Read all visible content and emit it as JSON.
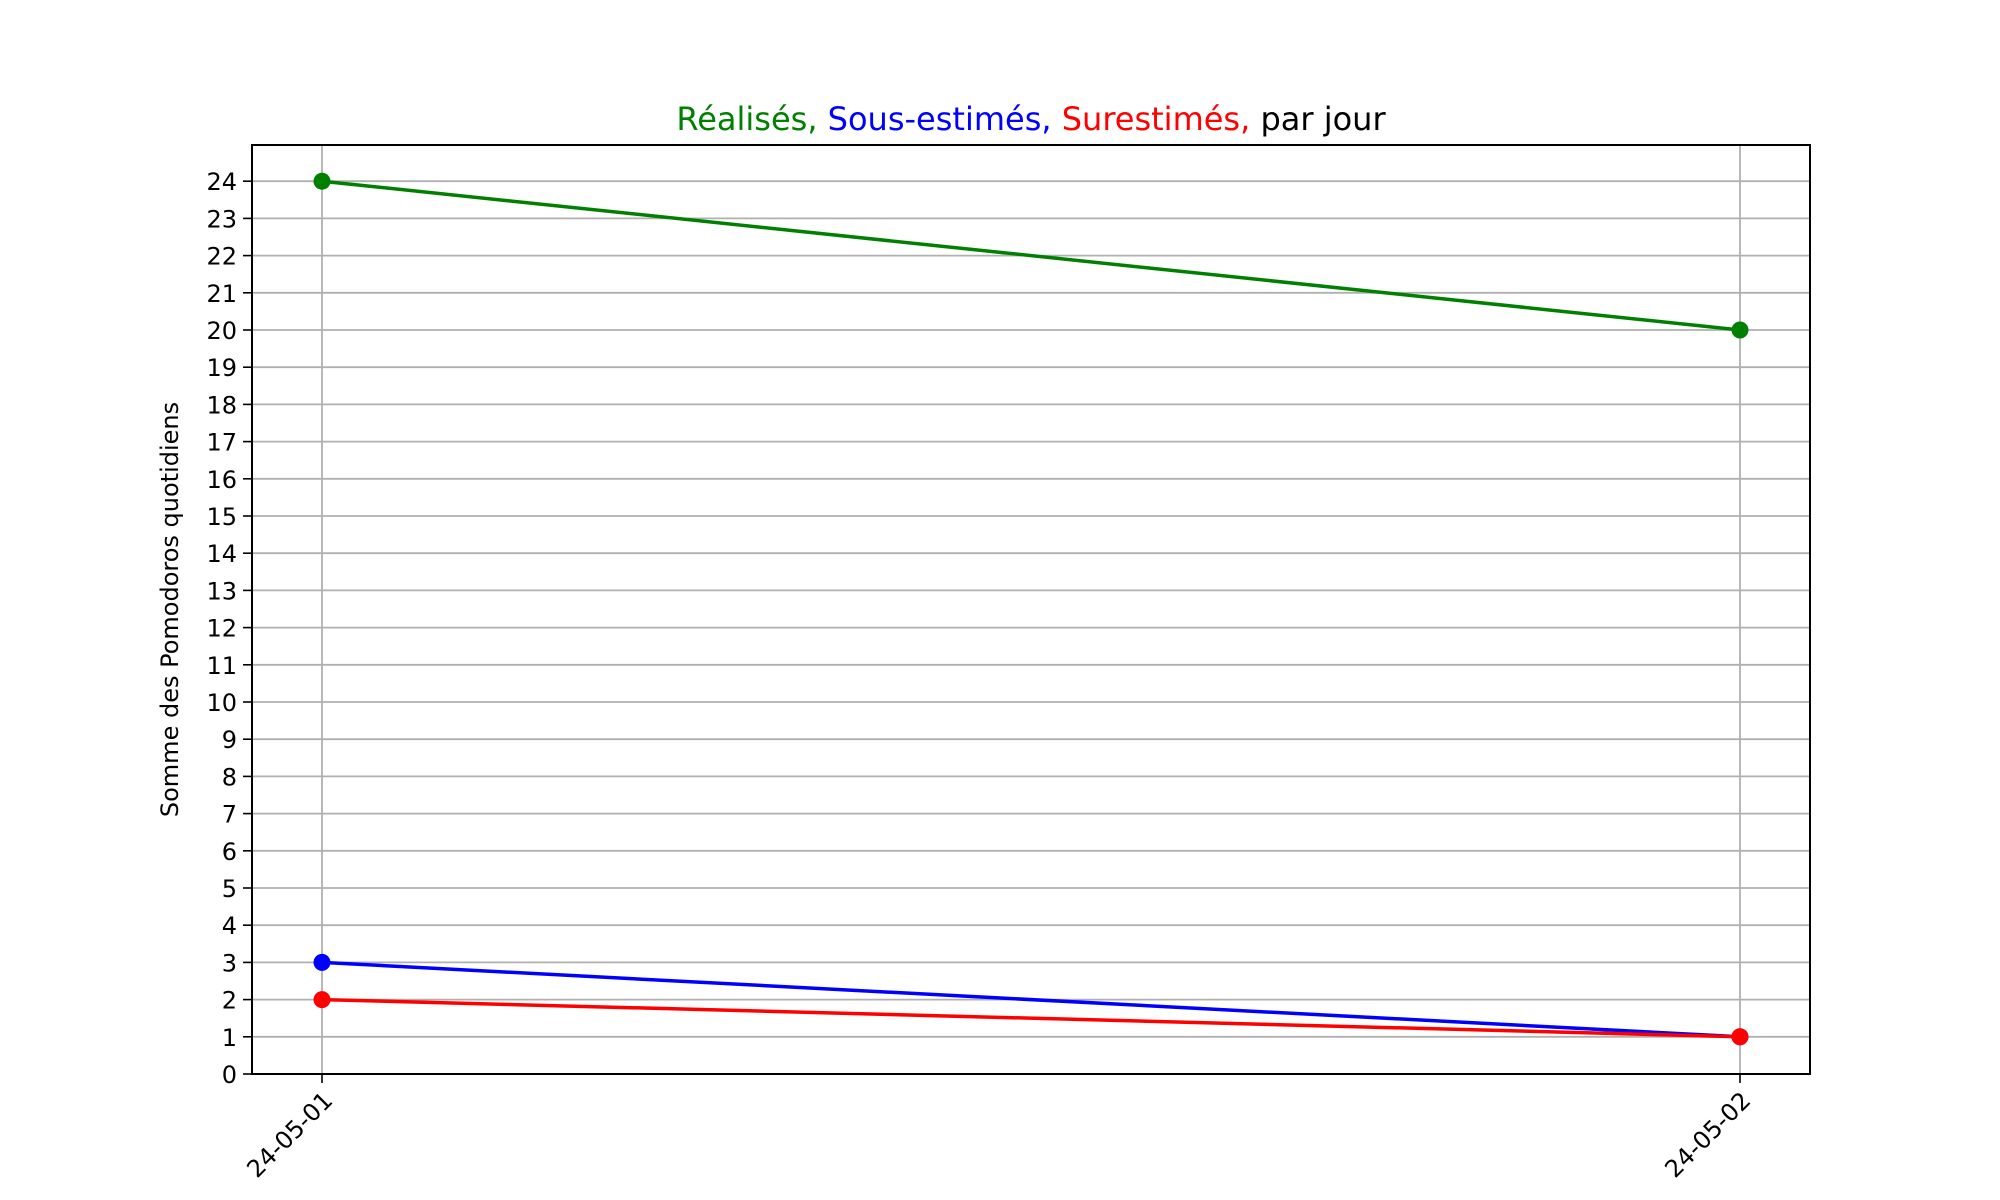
{
  "chart_data": {
    "type": "line",
    "title_parts": [
      {
        "text": "Réalisés,",
        "color": "#008000"
      },
      {
        "text": "Sous-estimés,",
        "color": "#0000ff"
      },
      {
        "text": "Surestimés,",
        "color": "#ff0000"
      },
      {
        "text": "par jour",
        "color": "#000000"
      }
    ],
    "xlabel": "",
    "ylabel": "Somme des Pomodoros quotidiens",
    "categories": [
      "24-05-01",
      "24-05-02"
    ],
    "series": [
      {
        "key": "realises",
        "color": "#008000",
        "values": [
          24,
          20
        ]
      },
      {
        "key": "sous_estimes",
        "color": "#0000ff",
        "values": [
          3,
          1
        ]
      },
      {
        "key": "surestimes",
        "color": "#ff0000",
        "values": [
          2,
          1
        ]
      }
    ],
    "ylim": [
      0,
      25
    ],
    "yticks": [
      0,
      1,
      2,
      3,
      4,
      5,
      6,
      7,
      8,
      9,
      10,
      11,
      12,
      13,
      14,
      15,
      16,
      17,
      18,
      19,
      20,
      21,
      22,
      23,
      24
    ],
    "grid": true,
    "legend": "none"
  }
}
